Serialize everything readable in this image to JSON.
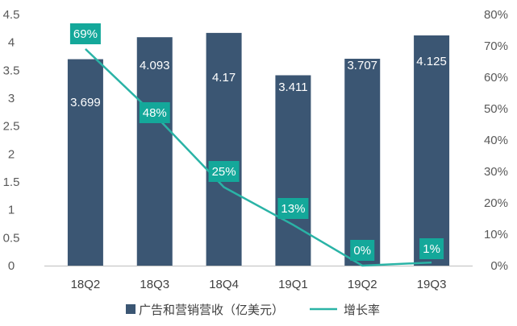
{
  "chart_data": {
    "type": "bar",
    "categories": [
      "18Q2",
      "18Q3",
      "18Q4",
      "19Q1",
      "19Q2",
      "19Q3"
    ],
    "series": [
      {
        "name": "广告和营销营收（亿美元）",
        "kind": "bar",
        "axis": "left",
        "values": [
          3.699,
          4.093,
          4.17,
          3.411,
          3.707,
          4.125
        ],
        "labels": [
          "3.699",
          "4.093",
          "4.17",
          "3.411",
          "3.707",
          "4.125"
        ],
        "color": "#3b5673"
      },
      {
        "name": "增长率",
        "kind": "line",
        "axis": "right",
        "values": [
          69,
          48,
          25,
          13,
          0,
          1
        ],
        "labels": [
          "69%",
          "48%",
          "25%",
          "13%",
          "0%",
          "1%"
        ],
        "color": "#2ab3a6"
      }
    ],
    "left_axis": {
      "min": 0,
      "max": 4.5,
      "ticks": [
        0,
        0.5,
        1,
        1.5,
        2,
        2.5,
        3,
        3.5,
        4,
        4.5
      ],
      "tick_labels": [
        "0",
        "0.5",
        "1",
        "1.5",
        "2",
        "2.5",
        "3",
        "3.5",
        "4",
        "4.5"
      ]
    },
    "right_axis": {
      "min": 0,
      "max": 80,
      "ticks": [
        0,
        10,
        20,
        30,
        40,
        50,
        60,
        70,
        80
      ],
      "tick_labels": [
        "0%",
        "10%",
        "20%",
        "30%",
        "40%",
        "50%",
        "60%",
        "70%",
        "80%"
      ]
    },
    "label_box_color": "#14a89a",
    "axis_line_color": "#bfbfbf",
    "grid": false,
    "legend_position": "bottom"
  }
}
